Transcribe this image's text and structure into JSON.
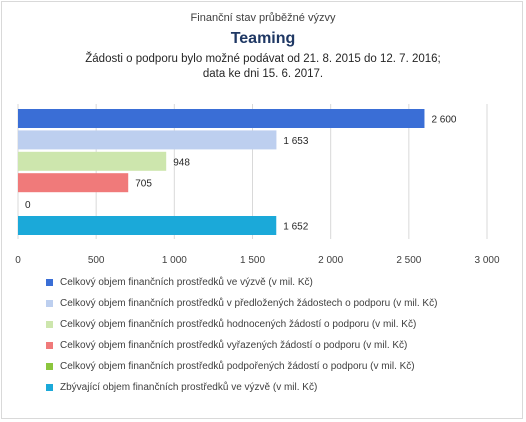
{
  "header": {
    "subtitle": "Finanční stav průběžné výzvy",
    "title": "Teaming",
    "line1": "Žádosti o podporu bylo možné  podávat od 21. 8. 2015 do 12. 7. 2016;",
    "line2": "data ke dni 15. 6. 2017."
  },
  "chart_data": {
    "type": "bar",
    "orientation": "horizontal",
    "title": "Teaming",
    "subtitle": "Finanční stav průběžné výzvy",
    "xlim": [
      0,
      3000
    ],
    "x_ticks": [
      0,
      500,
      1000,
      1500,
      2000,
      2500,
      3000
    ],
    "x_tick_labels": [
      "0",
      "500",
      "1 000",
      "1 500",
      "2 000",
      "2 500",
      "3 000"
    ],
    "grid": true,
    "legend_position": "bottom",
    "series": [
      {
        "name": "Celkový objem finančních prostředků ve výzvě (v mil. Kč)",
        "value": 2600,
        "label": "2 600",
        "color": "#3A6ED6"
      },
      {
        "name": "Celkový objem finančních prostředků v předložených žádostech o podporu (v mil. Kč)",
        "value": 1653,
        "label": "1 653",
        "color": "#BDCFEF"
      },
      {
        "name": "Celkový objem finančních prostředků hodnocených žádostí o podporu (v mil. Kč)",
        "value": 948,
        "label": "948",
        "color": "#CDE6AD"
      },
      {
        "name": "Celkový objem finančních prostředků vyřazených žádostí o podporu (v mil. Kč)",
        "value": 705,
        "label": "705",
        "color": "#F07A7A"
      },
      {
        "name": "Celkový objem finančních prostředků podpořených žádostí o podporu (v mil. Kč)",
        "value": 0,
        "label": "0",
        "color": "#8CC63E"
      },
      {
        "name": "Zbývající objem finančních prostředků ve výzvě (v mil. Kč)",
        "value": 1652,
        "label": "1 652",
        "color": "#1BA9D9"
      }
    ]
  }
}
